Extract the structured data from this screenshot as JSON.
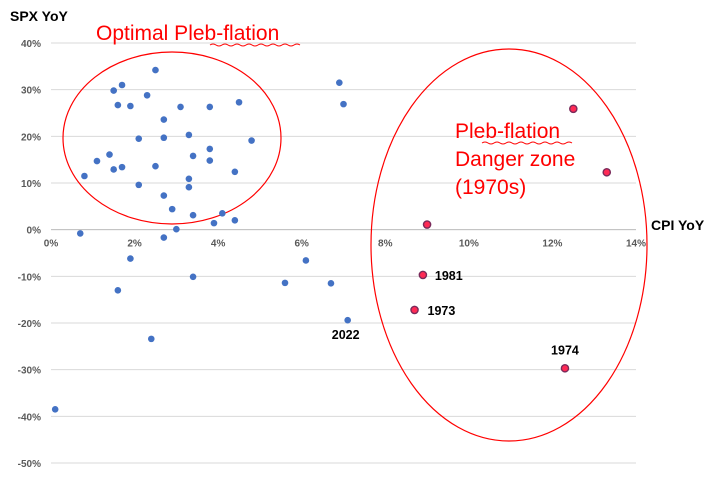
{
  "chart_data": {
    "type": "scatter",
    "ylabel": "SPX YoY",
    "xlabel": "CPI YoY",
    "xlim": [
      0,
      14
    ],
    "ylim": [
      -50,
      40
    ],
    "x_ticks": [
      "0%",
      "2%",
      "4%",
      "6%",
      "8%",
      "10%",
      "12%",
      "14%"
    ],
    "y_ticks": [
      "40%",
      "30%",
      "20%",
      "10%",
      "0%",
      "-10%",
      "-20%",
      "-30%",
      "-40%",
      "-50%"
    ],
    "grid": "horizontal",
    "annotations": [
      {
        "text": "Optimal Pleb-flation"
      },
      {
        "lines": [
          "Pleb-flation",
          "Danger zone",
          "(1970s)"
        ]
      }
    ],
    "series": [
      {
        "color": "#4472c4",
        "points": [
          {
            "x": 0.1,
            "y": -38.5
          },
          {
            "x": 0.7,
            "y": -0.8
          },
          {
            "x": 0.8,
            "y": 11.5
          },
          {
            "x": 1.1,
            "y": 14.7
          },
          {
            "x": 1.4,
            "y": 16.1
          },
          {
            "x": 1.5,
            "y": 12.9
          },
          {
            "x": 1.5,
            "y": 29.8
          },
          {
            "x": 1.6,
            "y": 26.7
          },
          {
            "x": 1.6,
            "y": -13.0
          },
          {
            "x": 1.7,
            "y": 31.0
          },
          {
            "x": 1.7,
            "y": 13.4
          },
          {
            "x": 1.9,
            "y": 26.5
          },
          {
            "x": 1.9,
            "y": -6.2
          },
          {
            "x": 2.1,
            "y": 19.5
          },
          {
            "x": 2.1,
            "y": 9.6
          },
          {
            "x": 2.3,
            "y": 28.8
          },
          {
            "x": 2.4,
            "y": -23.4
          },
          {
            "x": 2.5,
            "y": 34.2
          },
          {
            "x": 2.5,
            "y": 13.6
          },
          {
            "x": 2.7,
            "y": 23.6
          },
          {
            "x": 2.7,
            "y": 19.7
          },
          {
            "x": 2.7,
            "y": 7.3
          },
          {
            "x": 2.7,
            "y": -1.7
          },
          {
            "x": 2.9,
            "y": 4.4
          },
          {
            "x": 3.0,
            "y": 0.1
          },
          {
            "x": 3.1,
            "y": 26.3
          },
          {
            "x": 3.3,
            "y": 20.3
          },
          {
            "x": 3.3,
            "y": 10.9
          },
          {
            "x": 3.3,
            "y": 9.1
          },
          {
            "x": 3.4,
            "y": 15.8
          },
          {
            "x": 3.4,
            "y": 3.1
          },
          {
            "x": 3.4,
            "y": -10.1
          },
          {
            "x": 3.8,
            "y": 26.3
          },
          {
            "x": 3.8,
            "y": 17.3
          },
          {
            "x": 3.8,
            "y": 14.8
          },
          {
            "x": 3.9,
            "y": 1.4
          },
          {
            "x": 4.1,
            "y": 3.5
          },
          {
            "x": 4.4,
            "y": 12.4
          },
          {
            "x": 4.4,
            "y": 2.0
          },
          {
            "x": 4.5,
            "y": 27.3
          },
          {
            "x": 4.8,
            "y": 19.1
          },
          {
            "x": 5.6,
            "y": -11.4
          },
          {
            "x": 6.1,
            "y": -6.6
          },
          {
            "x": 6.7,
            "y": -11.5
          },
          {
            "x": 6.9,
            "y": 31.5
          },
          {
            "x": 7.0,
            "y": 26.9
          },
          {
            "x": 7.1,
            "y": -19.4,
            "label": "2022"
          }
        ]
      },
      {
        "color": "#ff2a55",
        "points": [
          {
            "x": 8.7,
            "y": -17.2,
            "label": "1973"
          },
          {
            "x": 8.9,
            "y": -9.7,
            "label": "1981"
          },
          {
            "x": 9.0,
            "y": 1.1
          },
          {
            "x": 12.3,
            "y": -29.7,
            "label": "1974"
          },
          {
            "x": 12.5,
            "y": 25.9
          },
          {
            "x": 13.3,
            "y": 12.3
          }
        ]
      }
    ]
  }
}
